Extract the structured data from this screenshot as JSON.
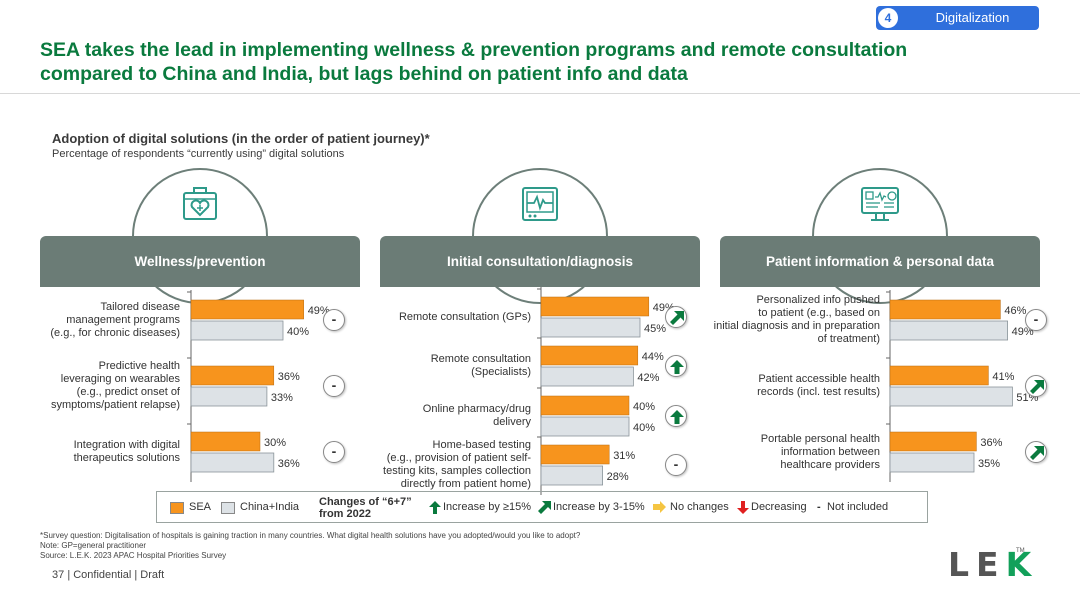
{
  "header": {
    "tag_number": "4",
    "tag_label": "Digitalization",
    "title": "SEA takes the lead in implementing wellness & prevention programs and remote consultation compared to China and India, but lags behind on patient info and data"
  },
  "chart_data": {
    "type": "bar",
    "orientation": "horizontal",
    "title": "Adoption of digital solutions (in the order of patient journey)*",
    "subtitle": "Percentage of respondents “currently using” digital solutions",
    "series_names": [
      "SEA",
      "China+India"
    ],
    "colors": {
      "SEA": "#f7941d",
      "China+India": "#dde2e6"
    },
    "sections": [
      {
        "name": "Wellness/prevention",
        "items": [
          {
            "label": "Tailored disease\nmanagement programs\n(e.g., for chronic diseases)",
            "sea": 49,
            "china_india": 40,
            "change": "not_included"
          },
          {
            "label": "Predictive health\nleveraging on wearables\n(e.g., predict onset of\nsymptoms/patient relapse)",
            "sea": 36,
            "china_india": 33,
            "change": "not_included"
          },
          {
            "label": "Integration with digital\ntherapeutics solutions",
            "sea": 30,
            "china_india": 36,
            "change": "not_included"
          }
        ]
      },
      {
        "name": "Initial consultation/diagnosis",
        "items": [
          {
            "label": "Remote consultation (GPs)",
            "sea": 49,
            "china_india": 45,
            "change": "increase_3_15"
          },
          {
            "label": "Remote consultation\n(Specialists)",
            "sea": 44,
            "china_india": 42,
            "change": "increase_15"
          },
          {
            "label": "Online pharmacy/drug\ndelivery",
            "sea": 40,
            "china_india": 40,
            "change": "increase_15"
          },
          {
            "label": "Home-based testing\n(e.g., provision of patient self-\ntesting kits, samples collection\ndirectly from patient home)",
            "sea": 31,
            "china_india": 28,
            "change": "not_included"
          }
        ]
      },
      {
        "name": "Patient information & personal data",
        "items": [
          {
            "label": "Personalized info pushed\nto patient (e.g., based on\ninitial diagnosis and in preparation\nof treatment)",
            "sea": 46,
            "china_india": 49,
            "change": "not_included"
          },
          {
            "label": "Patient accessible health\nrecords (incl. test results)",
            "sea": 41,
            "china_india": 51,
            "change": "increase_3_15"
          },
          {
            "label": "Portable personal health\ninformation between\nhealthcare providers",
            "sea": 36,
            "china_india": 35,
            "change": "increase_3_15"
          }
        ]
      }
    ],
    "value_suffix": "%"
  },
  "legend": {
    "sea": "SEA",
    "china_india": "China+India",
    "changes_title": "Changes of “6+7”\nfrom 2022",
    "increase_15": "Increase by ≥15%",
    "increase_3_15": "Increase by 3-15%",
    "no_changes": "No changes",
    "decreasing": "Decreasing",
    "not_included_symbol": "-",
    "not_included": "Not included"
  },
  "footnotes": {
    "survey": "*Survey question: Digitalisation of hospitals is gaining traction in many countries. What digital health solutions have you adopted/would you like to adopt?",
    "note": "Note: GP=general practitioner",
    "source": "Source: L.E.K. 2023 APAC Hospital Priorities Survey"
  },
  "footer": {
    "page": "37",
    "label": "| Confidential | Draft",
    "logo_l": "L",
    "logo_e": "E",
    "logo_k": "K",
    "tm": "TM"
  },
  "icons": [
    "first-aid-kit-heart-icon",
    "heart-monitor-icon",
    "health-dashboard-icon",
    "arrow-up-icon",
    "arrow-diagonal-up-icon",
    "arrow-right-icon",
    "arrow-down-icon"
  ]
}
